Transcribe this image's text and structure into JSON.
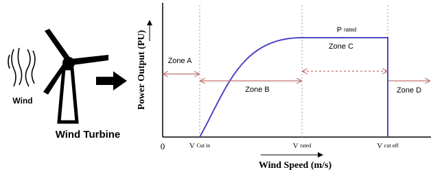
{
  "left": {
    "wind_label": "Wind",
    "turbine_label": "Wind Turbine"
  },
  "axes": {
    "y_title": "Power Output (PU)",
    "x_title": "Wind Speed (m/s)",
    "origin": "0"
  },
  "speeds": [
    {
      "main": "V",
      "sub": "Cut in"
    },
    {
      "main": "V",
      "sub": "rated"
    },
    {
      "main": "V",
      "sub": "cut off"
    }
  ],
  "power": {
    "main": "P",
    "sub": "rated"
  },
  "zones": [
    "Zone A",
    "Zone B",
    "Zone C",
    "Zone D"
  ]
}
